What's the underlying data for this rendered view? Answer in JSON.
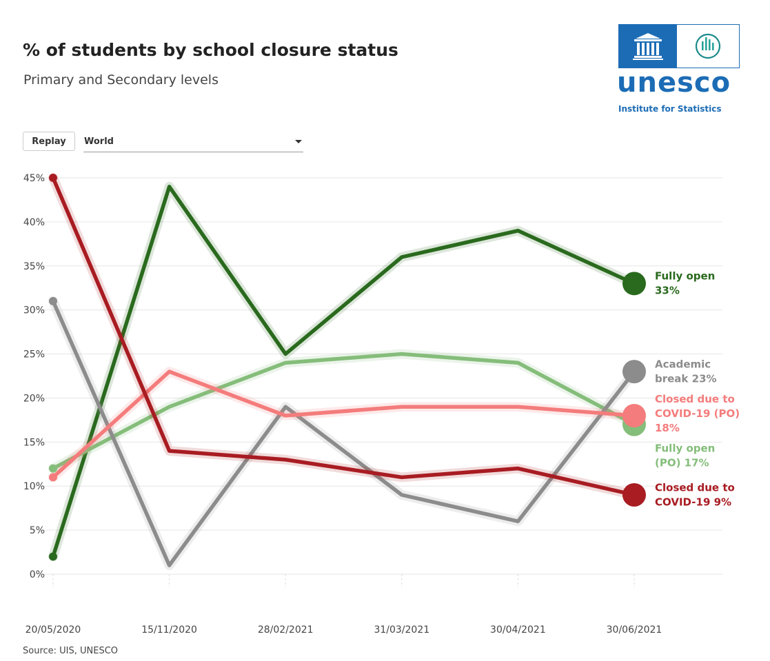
{
  "header": {
    "title": "% of students by school closure status",
    "subtitle": "Primary and Secondary levels"
  },
  "logo": {
    "wordmark": "unesco",
    "subtitle": "Institute for Statistics"
  },
  "controls": {
    "replay_label": "Replay",
    "region_selected": "World"
  },
  "source": "Source: UIS, UNESCO",
  "colors": {
    "fully_open": "#2a6a1e",
    "fully_open_po": "#85bd7a",
    "academic_break": "#8c8c8c",
    "closed_po": "#f47c7c",
    "closed": "#a81c22",
    "brand": "#1c6cb5"
  },
  "chart_data": {
    "type": "line",
    "title": "% of students by school closure status",
    "subtitle": "Primary and Secondary levels",
    "categories": [
      "20/05/2020",
      "15/11/2020",
      "28/02/2021",
      "31/03/2021",
      "30/04/2021",
      "30/06/2021"
    ],
    "yticks": [
      "0%",
      "5%",
      "10%",
      "15%",
      "20%",
      "25%",
      "30%",
      "35%",
      "40%",
      "45%"
    ],
    "ylim": [
      0,
      45
    ],
    "grid": true,
    "series": [
      {
        "name": "Fully open",
        "end_label": [
          "Fully open",
          "33%"
        ],
        "color": "#2a6a1e",
        "values": [
          2,
          44,
          25,
          36,
          39,
          33
        ]
      },
      {
        "name": "Fully open (PO)",
        "end_label": [
          "Fully open",
          "(PO) 17%"
        ],
        "color": "#85bd7a",
        "values": [
          12,
          19,
          24,
          25,
          24,
          17
        ]
      },
      {
        "name": "Academic break",
        "end_label": [
          "Academic",
          "break 23%"
        ],
        "color": "#8c8c8c",
        "values": [
          31,
          1,
          19,
          9,
          6,
          23
        ]
      },
      {
        "name": "Closed due to COVID-19 (PO)",
        "end_label": [
          "Closed due to",
          "COVID-19 (PO)",
          "18%"
        ],
        "color": "#f47c7c",
        "values": [
          11,
          23,
          18,
          19,
          19,
          18
        ]
      },
      {
        "name": "Closed due to COVID-19",
        "end_label": [
          "Closed due to",
          "COVID-19 9%"
        ],
        "color": "#a81c22",
        "values": [
          45,
          14,
          13,
          11,
          12,
          9
        ]
      }
    ]
  }
}
